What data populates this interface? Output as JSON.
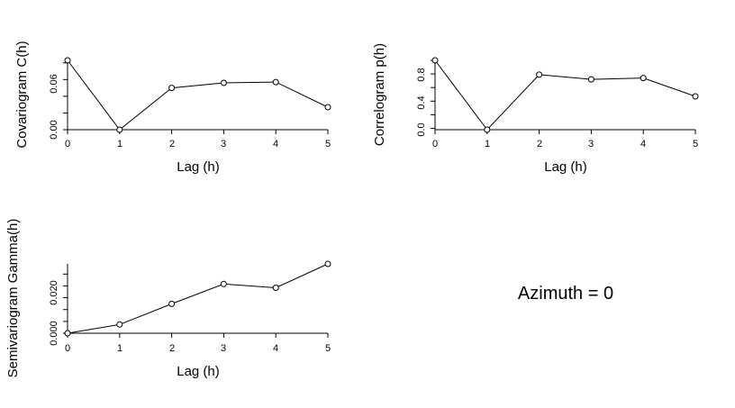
{
  "chart_data": [
    {
      "id": "covariogram",
      "type": "line",
      "xlabel": "Lag (h)",
      "ylabel": "Covariogram C(h)",
      "x": [
        0,
        1,
        2,
        3,
        4,
        5
      ],
      "series": [
        {
          "values": [
            0.083,
            0.0,
            0.05,
            0.056,
            0.057,
            0.027
          ]
        }
      ],
      "xlim": [
        0,
        5
      ],
      "ylim": [
        0,
        0.083
      ],
      "xticks": [
        "0",
        "1",
        "2",
        "3",
        "4",
        "5"
      ],
      "yticks": [
        "0.00",
        "0.06"
      ],
      "marker": "open-circle",
      "grid": false
    },
    {
      "id": "correlogram",
      "type": "line",
      "xlabel": "Lag (h)",
      "ylabel": "Correlogram p(h)",
      "x": [
        0,
        1,
        2,
        3,
        4,
        5
      ],
      "series": [
        {
          "values": [
            1.0,
            -0.02,
            0.79,
            0.72,
            0.74,
            0.47
          ]
        }
      ],
      "xlim": [
        0,
        5
      ],
      "ylim": [
        -0.02,
        1.0
      ],
      "xticks": [
        "0",
        "1",
        "2",
        "3",
        "4",
        "5"
      ],
      "yticks": [
        "0.0",
        "0.4",
        "0.8"
      ],
      "marker": "open-circle",
      "grid": false
    },
    {
      "id": "semivariogram",
      "type": "line",
      "xlabel": "Lag (h)",
      "ylabel": "Semivariogram Gamma(h)",
      "x": [
        0,
        1,
        2,
        3,
        4,
        5
      ],
      "series": [
        {
          "values": [
            0.0,
            0.0037,
            0.0124,
            0.0208,
            0.0192,
            0.0293
          ]
        }
      ],
      "xlim": [
        0,
        5
      ],
      "ylim": [
        0,
        0.0293
      ],
      "xticks": [
        "0",
        "1",
        "2",
        "3",
        "4",
        "5"
      ],
      "yticks": [
        "0.000",
        "0.020"
      ],
      "marker": "open-circle",
      "grid": false
    }
  ],
  "annotation": "Azimuth = 0"
}
